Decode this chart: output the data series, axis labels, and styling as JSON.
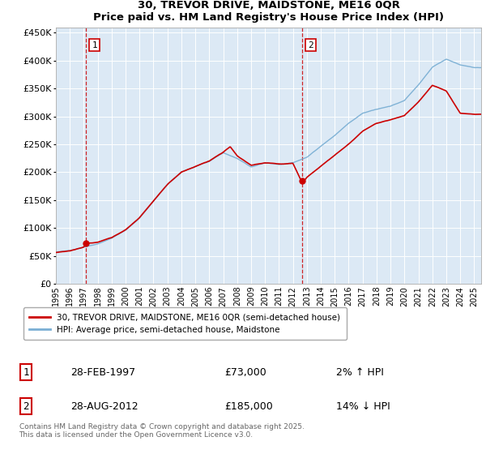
{
  "title": "30, TREVOR DRIVE, MAIDSTONE, ME16 0QR",
  "subtitle": "Price paid vs. HM Land Registry's House Price Index (HPI)",
  "ylim": [
    0,
    460000
  ],
  "yticks": [
    0,
    50000,
    100000,
    150000,
    200000,
    250000,
    300000,
    350000,
    400000,
    450000
  ],
  "ytick_labels": [
    "£0",
    "£50K",
    "£100K",
    "£150K",
    "£200K",
    "£250K",
    "£300K",
    "£350K",
    "£400K",
    "£450K"
  ],
  "plot_bg_color": "#dce9f5",
  "legend_label_red": "30, TREVOR DRIVE, MAIDSTONE, ME16 0QR (semi-detached house)",
  "legend_label_blue": "HPI: Average price, semi-detached house, Maidstone",
  "annotation1_date": "28-FEB-1997",
  "annotation1_price": "£73,000",
  "annotation1_hpi": "2% ↑ HPI",
  "annotation2_date": "28-AUG-2012",
  "annotation2_price": "£185,000",
  "annotation2_hpi": "14% ↓ HPI",
  "footer": "Contains HM Land Registry data © Crown copyright and database right 2025.\nThis data is licensed under the Open Government Licence v3.0.",
  "red_color": "#cc0000",
  "blue_color": "#7aafd4",
  "dashed_color": "#cc0000",
  "sale1_x": 1997.17,
  "sale1_y": 73000,
  "sale2_x": 2012.67,
  "sale2_y": 185000,
  "xlim": [
    1995,
    2025.5
  ],
  "xtick_start": 1995,
  "xtick_end": 2025
}
